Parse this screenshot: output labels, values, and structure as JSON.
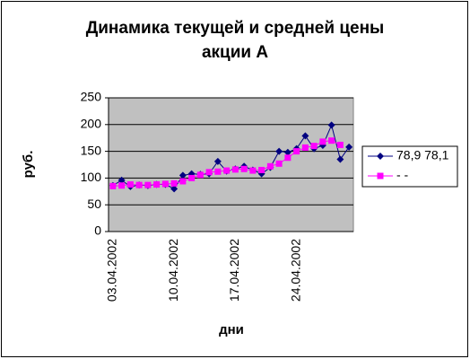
{
  "chart_data": {
    "type": "line",
    "title": [
      "Динамика текущей и средней цены",
      "акции А"
    ],
    "x_label": "дни",
    "y_label": "руб.",
    "categories": [
      "03.04.2002",
      null,
      null,
      null,
      null,
      null,
      null,
      "10.04.2002",
      null,
      null,
      null,
      null,
      null,
      null,
      "17.04.2002",
      null,
      null,
      null,
      null,
      null,
      null,
      "24.04.2002",
      null,
      null,
      null,
      null,
      null,
      null
    ],
    "series": [
      {
        "name": "78,9 78,1",
        "color": "#000080",
        "marker": "diamond",
        "values": [
          86,
          96,
          84,
          87,
          86,
          88,
          88,
          80,
          105,
          108,
          107,
          108,
          131,
          113,
          117,
          122,
          115,
          108,
          120,
          150,
          148,
          155,
          179,
          155,
          161,
          199,
          135,
          158
        ]
      },
      {
        "name": "- -",
        "color": "#ff00ff",
        "marker": "square",
        "values": [
          85,
          86,
          88,
          87,
          87,
          88,
          89,
          90,
          94,
          100,
          106,
          111,
          112,
          114,
          116,
          117,
          114,
          115,
          122,
          127,
          138,
          150,
          157,
          160,
          168,
          170,
          162,
          null
        ]
      }
    ],
    "ylim": [
      0,
      250
    ],
    "yticks": [
      0,
      50,
      100,
      150,
      200,
      250
    ],
    "grid": true,
    "legend": "right"
  }
}
